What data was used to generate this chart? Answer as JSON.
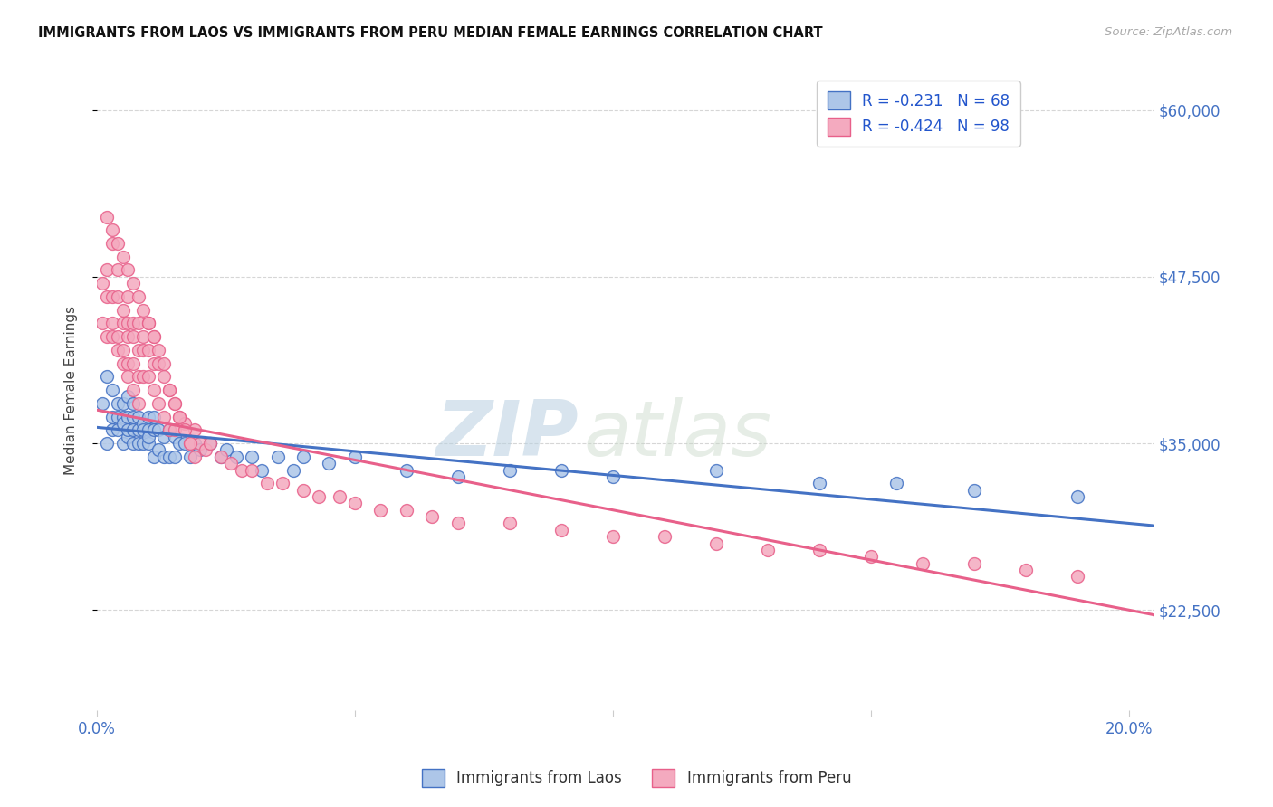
{
  "title": "IMMIGRANTS FROM LAOS VS IMMIGRANTS FROM PERU MEDIAN FEMALE EARNINGS CORRELATION CHART",
  "source": "Source: ZipAtlas.com",
  "ylabel": "Median Female Earnings",
  "xlim": [
    0.0,
    0.205
  ],
  "ylim": [
    15000,
    63000
  ],
  "yticks": [
    22500,
    35000,
    47500,
    60000
  ],
  "ytick_labels": [
    "$22,500",
    "$35,000",
    "$47,500",
    "$60,000"
  ],
  "xtick_positions": [
    0.0,
    0.05,
    0.1,
    0.15,
    0.2
  ],
  "xtick_labels": [
    "0.0%",
    "",
    "",
    "",
    "20.0%"
  ],
  "legend_r_laos": "R = -0.231",
  "legend_n_laos": "N = 68",
  "legend_r_peru": "R = -0.424",
  "legend_n_peru": "N = 98",
  "legend_label_laos": "Immigrants from Laos",
  "legend_label_peru": "Immigrants from Peru",
  "color_laos": "#adc6e8",
  "color_peru": "#f4aabf",
  "line_color_laos": "#4472c4",
  "line_color_peru": "#e8608a",
  "watermark_zip": "ZIP",
  "watermark_atlas": "atlas",
  "axis_color": "#4472c4",
  "background_color": "#ffffff",
  "grid_color": "#cccccc",
  "laos_x": [
    0.001,
    0.002,
    0.002,
    0.003,
    0.003,
    0.003,
    0.004,
    0.004,
    0.004,
    0.005,
    0.005,
    0.005,
    0.005,
    0.006,
    0.006,
    0.006,
    0.006,
    0.007,
    0.007,
    0.007,
    0.007,
    0.008,
    0.008,
    0.008,
    0.009,
    0.009,
    0.009,
    0.01,
    0.01,
    0.01,
    0.01,
    0.011,
    0.011,
    0.011,
    0.012,
    0.012,
    0.013,
    0.013,
    0.014,
    0.014,
    0.015,
    0.015,
    0.016,
    0.017,
    0.018,
    0.019,
    0.02,
    0.022,
    0.024,
    0.025,
    0.027,
    0.03,
    0.032,
    0.035,
    0.038,
    0.04,
    0.045,
    0.05,
    0.06,
    0.07,
    0.08,
    0.09,
    0.1,
    0.12,
    0.14,
    0.155,
    0.17,
    0.19
  ],
  "laos_y": [
    38000,
    40000,
    35000,
    37000,
    39000,
    36000,
    38000,
    37000,
    36000,
    37000,
    35000,
    38000,
    36500,
    37000,
    35500,
    36000,
    38500,
    36000,
    35000,
    37000,
    38000,
    36000,
    35000,
    37000,
    36500,
    35000,
    36000,
    36000,
    35000,
    37000,
    35500,
    36000,
    34000,
    37000,
    36000,
    34500,
    35500,
    34000,
    36000,
    34000,
    35500,
    34000,
    35000,
    35000,
    34000,
    35000,
    34500,
    35000,
    34000,
    34500,
    34000,
    34000,
    33000,
    34000,
    33000,
    34000,
    33500,
    34000,
    33000,
    32500,
    33000,
    33000,
    32500,
    33000,
    32000,
    32000,
    31500,
    31000
  ],
  "peru_x": [
    0.001,
    0.001,
    0.002,
    0.002,
    0.002,
    0.003,
    0.003,
    0.003,
    0.003,
    0.004,
    0.004,
    0.004,
    0.004,
    0.005,
    0.005,
    0.005,
    0.005,
    0.006,
    0.006,
    0.006,
    0.006,
    0.006,
    0.007,
    0.007,
    0.007,
    0.007,
    0.008,
    0.008,
    0.008,
    0.008,
    0.009,
    0.009,
    0.009,
    0.01,
    0.01,
    0.01,
    0.011,
    0.011,
    0.011,
    0.012,
    0.012,
    0.013,
    0.013,
    0.014,
    0.014,
    0.015,
    0.015,
    0.016,
    0.017,
    0.018,
    0.019,
    0.02,
    0.021,
    0.022,
    0.024,
    0.026,
    0.028,
    0.03,
    0.033,
    0.036,
    0.04,
    0.043,
    0.047,
    0.05,
    0.055,
    0.06,
    0.065,
    0.07,
    0.08,
    0.09,
    0.1,
    0.11,
    0.12,
    0.13,
    0.14,
    0.15,
    0.16,
    0.17,
    0.18,
    0.19,
    0.002,
    0.003,
    0.004,
    0.005,
    0.006,
    0.007,
    0.008,
    0.009,
    0.01,
    0.011,
    0.012,
    0.013,
    0.014,
    0.015,
    0.016,
    0.017,
    0.018,
    0.019
  ],
  "peru_y": [
    44000,
    47000,
    43000,
    46000,
    48000,
    44000,
    46000,
    43000,
    50000,
    43000,
    46000,
    42000,
    48000,
    44000,
    42000,
    45000,
    41000,
    43000,
    41000,
    44000,
    40000,
    46000,
    43000,
    41000,
    44000,
    39000,
    42000,
    40000,
    44000,
    38000,
    42000,
    40000,
    43000,
    42000,
    40000,
    44000,
    41000,
    39000,
    43000,
    41000,
    38000,
    40000,
    37000,
    39000,
    36000,
    38000,
    36000,
    37000,
    36500,
    35000,
    36000,
    35000,
    34500,
    35000,
    34000,
    33500,
    33000,
    33000,
    32000,
    32000,
    31500,
    31000,
    31000,
    30500,
    30000,
    30000,
    29500,
    29000,
    29000,
    28500,
    28000,
    28000,
    27500,
    27000,
    27000,
    26500,
    26000,
    26000,
    25500,
    25000,
    52000,
    51000,
    50000,
    49000,
    48000,
    47000,
    46000,
    45000,
    44000,
    43000,
    42000,
    41000,
    39000,
    38000,
    37000,
    36000,
    35000,
    34000
  ]
}
